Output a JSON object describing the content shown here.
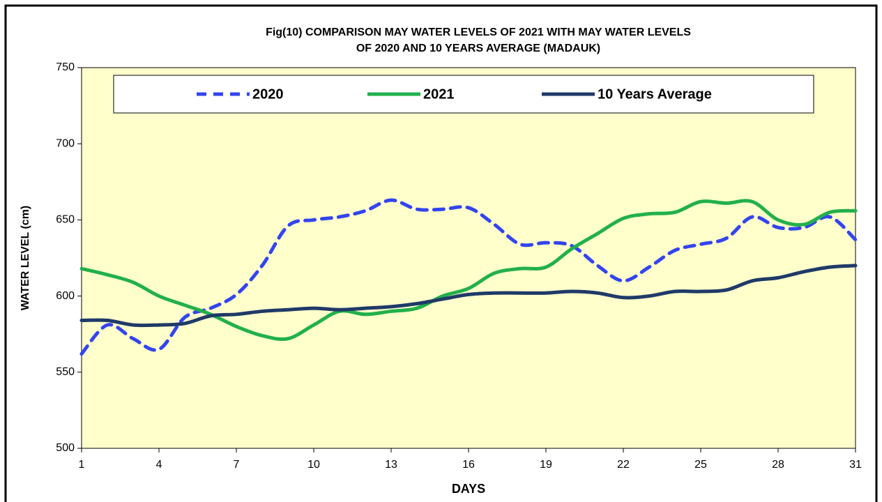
{
  "chart_data": {
    "type": "line",
    "title": [
      "Fig(10)  COMPARISON  MAY WATER LEVELS OF  2021  WITH  MAY WATER LEVELS",
      "OF 2020  AND 10 YEARS  AVERAGE  (MADAUK)"
    ],
    "x_label": "DAYS",
    "y_label": "WATER LEVEL (cm)",
    "x": [
      1,
      2,
      3,
      4,
      5,
      6,
      7,
      8,
      9,
      10,
      11,
      12,
      13,
      14,
      15,
      16,
      17,
      18,
      19,
      20,
      21,
      22,
      23,
      24,
      25,
      26,
      27,
      28,
      29,
      30,
      31
    ],
    "xlim": [
      1,
      31
    ],
    "xticks": [
      1,
      4,
      7,
      10,
      13,
      16,
      19,
      22,
      25,
      28,
      31
    ],
    "ylim": [
      500,
      750
    ],
    "yticks": [
      500,
      550,
      600,
      650,
      700,
      750
    ],
    "series": [
      {
        "name": "2020",
        "color": "#3344ee",
        "dashed": true,
        "values": [
          562,
          581,
          572,
          565,
          586,
          592,
          601,
          620,
          646,
          650,
          652,
          656,
          663,
          657,
          657,
          658,
          647,
          634,
          635,
          633,
          620,
          610,
          619,
          630,
          634,
          638,
          652,
          645,
          645,
          652,
          637
        ]
      },
      {
        "name": "2021",
        "color": "#22b04b",
        "dashed": false,
        "values": [
          618,
          614,
          609,
          600,
          594,
          588,
          580,
          574,
          572,
          581,
          590,
          588,
          590,
          592,
          600,
          605,
          615,
          618,
          619,
          631,
          641,
          651,
          654,
          655,
          662,
          661,
          662,
          650,
          647,
          655,
          656
        ]
      },
      {
        "name": "10 Years Average",
        "color": "#1f3a68",
        "dashed": false,
        "values": [
          584,
          584,
          581,
          581,
          582,
          587,
          588,
          590,
          591,
          592,
          591,
          592,
          593,
          595,
          598,
          601,
          602,
          602,
          602,
          603,
          602,
          599,
          600,
          603,
          603,
          604,
          610,
          612,
          616,
          619,
          620
        ]
      }
    ]
  }
}
